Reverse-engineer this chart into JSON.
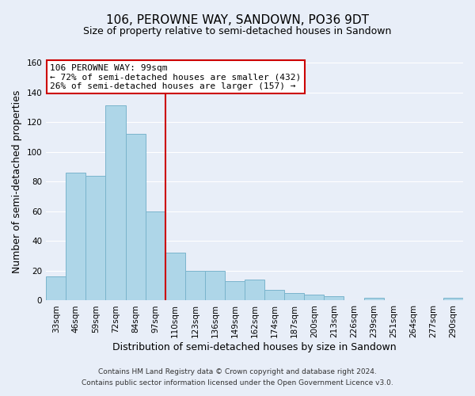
{
  "title": "106, PEROWNE WAY, SANDOWN, PO36 9DT",
  "subtitle": "Size of property relative to semi-detached houses in Sandown",
  "xlabel": "Distribution of semi-detached houses by size in Sandown",
  "ylabel": "Number of semi-detached properties",
  "bar_labels": [
    "33sqm",
    "46sqm",
    "59sqm",
    "72sqm",
    "84sqm",
    "97sqm",
    "110sqm",
    "123sqm",
    "136sqm",
    "149sqm",
    "162sqm",
    "174sqm",
    "187sqm",
    "200sqm",
    "213sqm",
    "226sqm",
    "239sqm",
    "251sqm",
    "264sqm",
    "277sqm",
    "290sqm"
  ],
  "bar_values": [
    16,
    86,
    84,
    131,
    112,
    60,
    32,
    20,
    20,
    13,
    14,
    7,
    5,
    4,
    3,
    0,
    2,
    0,
    0,
    0,
    2
  ],
  "bar_color": "#aed6e8",
  "bar_edge_color": "#7ab4cc",
  "highlight_index": 5,
  "highlight_line_color": "#cc0000",
  "ylim": [
    0,
    160
  ],
  "yticks": [
    0,
    20,
    40,
    60,
    80,
    100,
    120,
    140,
    160
  ],
  "annotation_text_line1": "106 PEROWNE WAY: 99sqm",
  "annotation_text_line2": "← 72% of semi-detached houses are smaller (432)",
  "annotation_text_line3": "26% of semi-detached houses are larger (157) →",
  "annotation_box_color": "#ffffff",
  "annotation_box_edge": "#cc0000",
  "footer_line1": "Contains HM Land Registry data © Crown copyright and database right 2024.",
  "footer_line2": "Contains public sector information licensed under the Open Government Licence v3.0.",
  "background_color": "#e8eef8",
  "grid_color": "#ffffff",
  "title_fontsize": 11,
  "subtitle_fontsize": 9,
  "axis_label_fontsize": 9,
  "tick_fontsize": 7.5,
  "footer_fontsize": 6.5
}
